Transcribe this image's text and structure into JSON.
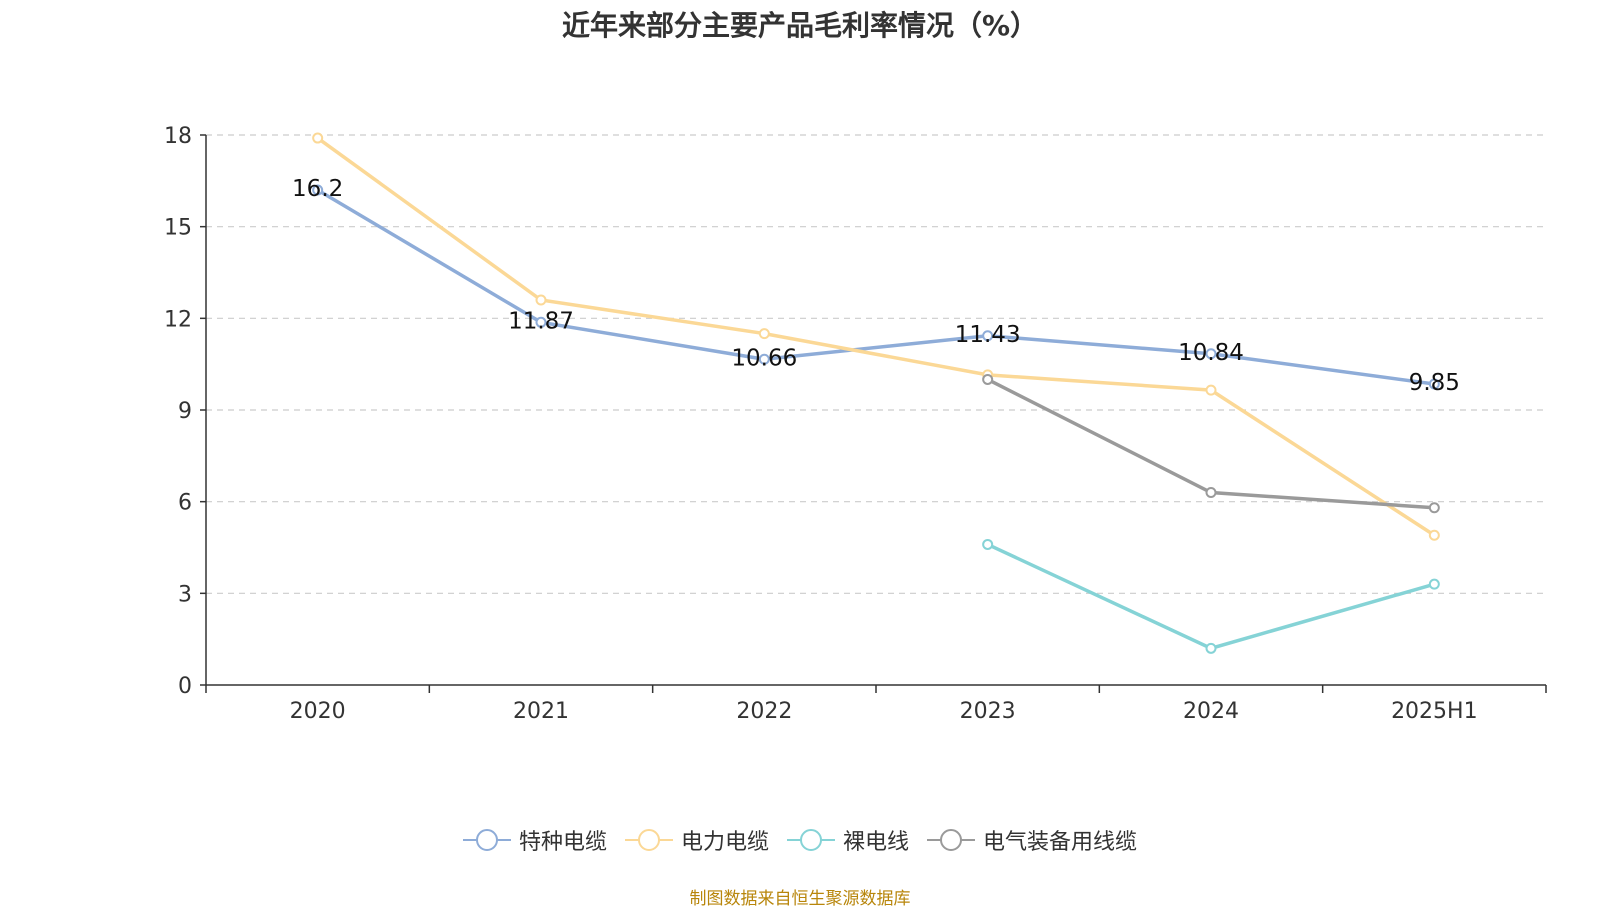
{
  "chart_data": {
    "type": "line",
    "title": "近年来部分主要产品毛利率情况（%）",
    "categories": [
      "2020",
      "2021",
      "2022",
      "2023",
      "2024",
      "2025H1"
    ],
    "ylim": [
      0,
      18
    ],
    "yticks": [
      0,
      3,
      6,
      9,
      12,
      15,
      18
    ],
    "grid": true,
    "legend_position": "bottom",
    "series": [
      {
        "name": "特种电缆",
        "color": "#8eacd8",
        "values": [
          16.2,
          11.87,
          10.66,
          11.43,
          10.84,
          9.85
        ],
        "labels": [
          "16.2",
          "11.87",
          "10.66",
          "11.43",
          "10.84",
          "9.85"
        ]
      },
      {
        "name": "电力电缆",
        "color": "#fbd896",
        "values": [
          17.9,
          12.6,
          11.5,
          10.15,
          9.65,
          4.9
        ],
        "labels": []
      },
      {
        "name": "裸电线",
        "color": "#85d3d6",
        "values": [
          null,
          null,
          null,
          4.6,
          1.2,
          3.3
        ],
        "labels": []
      },
      {
        "name": "电气装备用线缆",
        "color": "#9a9a9a",
        "values": [
          null,
          null,
          null,
          10.0,
          6.3,
          5.8
        ],
        "labels": []
      }
    ]
  },
  "source_text": "制图数据来自恒生聚源数据库"
}
